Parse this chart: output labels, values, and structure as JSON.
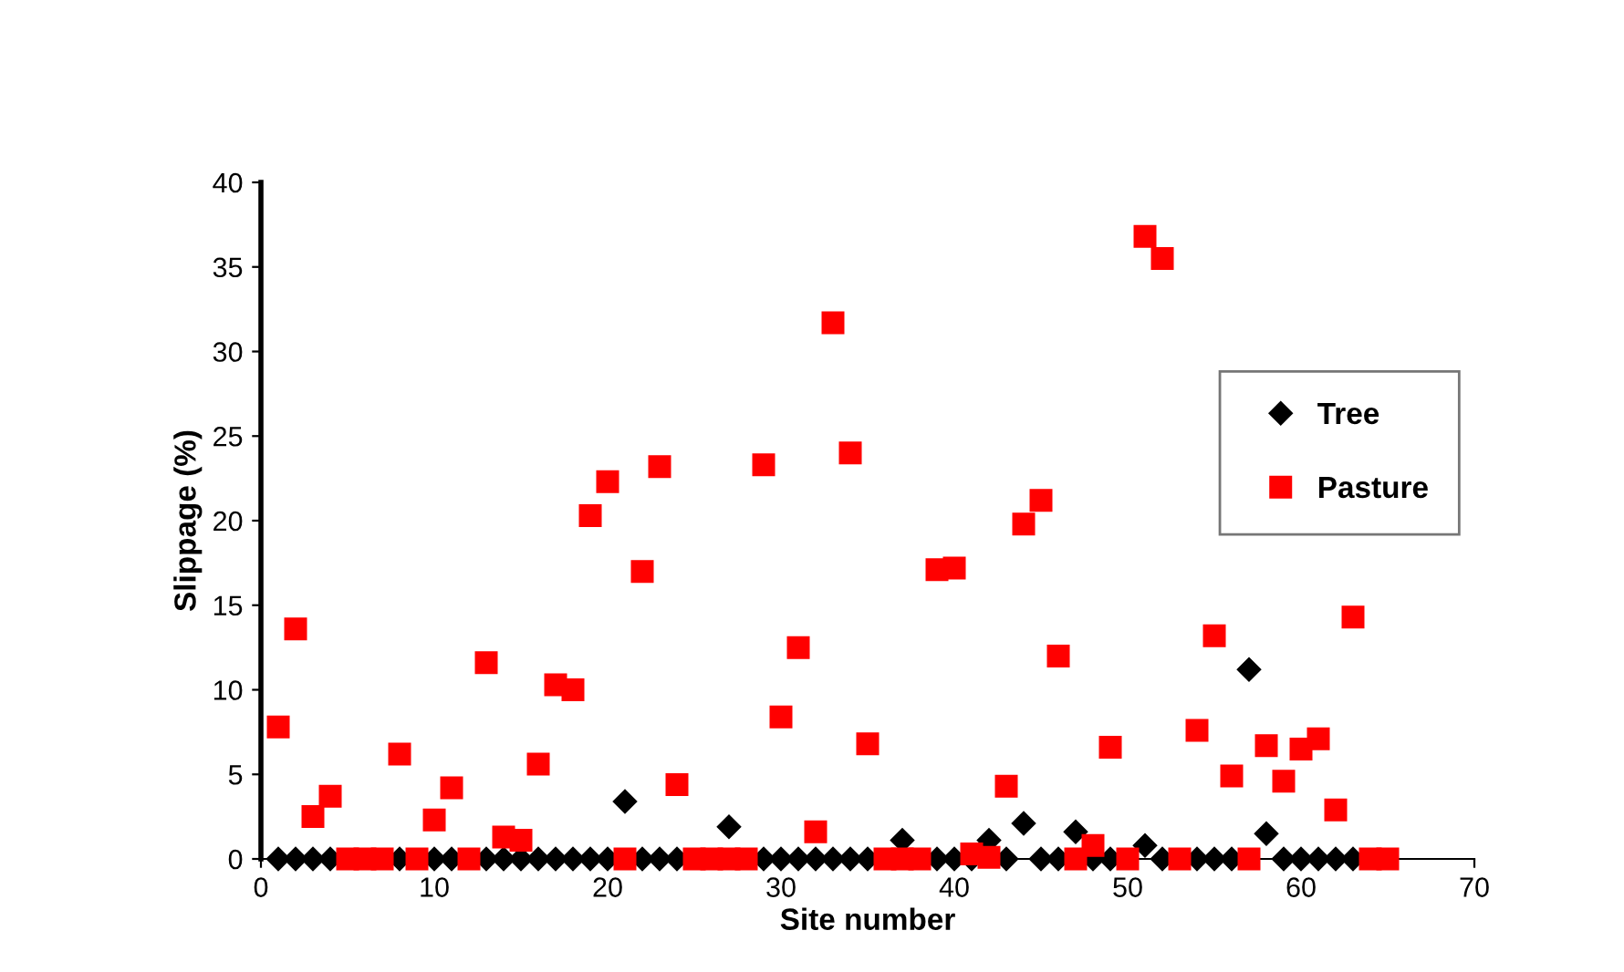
{
  "chart_data": {
    "type": "scatter",
    "xlabel": "Site number",
    "ylabel": "Slippage (%)",
    "xlim": [
      0,
      70
    ],
    "xticks": [
      0,
      10,
      20,
      30,
      40,
      50,
      60,
      70
    ],
    "ylim": [
      0,
      40
    ],
    "yticks": [
      0,
      5,
      10,
      15,
      20,
      25,
      30,
      35,
      40
    ],
    "grid": false,
    "legend": "right",
    "x": [
      1,
      2,
      3,
      4,
      5,
      6,
      7,
      8,
      9,
      10,
      11,
      12,
      13,
      14,
      15,
      16,
      17,
      18,
      19,
      20,
      21,
      22,
      23,
      24,
      25,
      26,
      27,
      28,
      29,
      30,
      31,
      32,
      33,
      34,
      35,
      36,
      37,
      38,
      39,
      40,
      41,
      42,
      43,
      44,
      45,
      46,
      47,
      48,
      49,
      50,
      51,
      52,
      53,
      54,
      55,
      56,
      57,
      58,
      59,
      60,
      61,
      62,
      63,
      64,
      65
    ],
    "series": [
      {
        "name": "Tree",
        "color": "#000000",
        "marker": "diamond",
        "values": [
          0,
          0,
          0,
          0,
          null,
          null,
          null,
          0,
          null,
          0,
          0,
          null,
          0,
          0,
          0,
          0,
          0,
          0,
          0,
          0,
          3.4,
          0,
          0,
          0,
          null,
          null,
          1.9,
          null,
          0,
          0,
          0,
          0,
          0,
          0,
          0,
          null,
          1.1,
          null,
          0,
          0,
          0,
          1.1,
          0,
          2.1,
          0,
          0,
          1.6,
          0,
          0,
          null,
          0.8,
          0,
          null,
          0,
          0,
          0,
          11.2,
          1.5,
          0,
          0,
          0,
          0,
          0,
          null,
          null
        ]
      },
      {
        "name": "Pasture",
        "color": "#ff0000",
        "marker": "square",
        "values": [
          7.8,
          13.6,
          2.5,
          3.7,
          0,
          0,
          0,
          6.2,
          0,
          2.3,
          4.2,
          0,
          11.6,
          1.3,
          1.1,
          5.6,
          10.3,
          10.0,
          20.3,
          22.3,
          0,
          17.0,
          23.2,
          4.4,
          0,
          0,
          0,
          0,
          23.3,
          8.4,
          12.5,
          1.6,
          31.7,
          24.0,
          6.8,
          0,
          0,
          0,
          17.1,
          17.2,
          0.3,
          0.1,
          4.3,
          19.8,
          21.2,
          12.0,
          0,
          0.8,
          6.6,
          0,
          36.8,
          35.5,
          0,
          7.6,
          13.2,
          4.9,
          0,
          6.7,
          4.6,
          6.5,
          7.1,
          2.9,
          14.3,
          0,
          0
        ]
      }
    ]
  }
}
